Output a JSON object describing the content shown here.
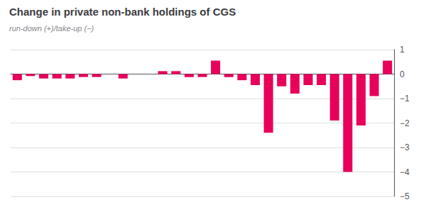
{
  "chart_data": {
    "type": "bar",
    "title": "Change in private non-bank holdings of CGS",
    "subtitle": "run-down (+)/take-up (−)",
    "categories": [
      null,
      null,
      null,
      null,
      null,
      null,
      null,
      null,
      null,
      null,
      null,
      null,
      null,
      null,
      null,
      null,
      null,
      null,
      null,
      null,
      null,
      null,
      null,
      null,
      null,
      null,
      null,
      null,
      null
    ],
    "values": [
      -0.25,
      -0.08,
      -0.18,
      -0.18,
      -0.18,
      -0.12,
      -0.12,
      0.0,
      -0.18,
      0.0,
      0.0,
      0.12,
      0.12,
      -0.12,
      -0.12,
      0.55,
      -0.12,
      -0.25,
      -0.45,
      -2.4,
      -0.5,
      -0.8,
      -0.45,
      -0.45,
      -1.9,
      -4.0,
      -2.1,
      -0.9,
      0.55
    ],
    "color": "#E8005A",
    "ylim": [
      -5,
      1
    ],
    "yticks": [
      1,
      0,
      {
        "value": -1,
        "label": "−1"
      },
      {
        "value": -2,
        "label": "−2"
      },
      {
        "value": -3,
        "label": "−3"
      },
      {
        "value": -4,
        "label": "−4"
      },
      {
        "value": -5,
        "label": "−5"
      }
    ],
    "grid": true,
    "tick_labels": "y"
  }
}
